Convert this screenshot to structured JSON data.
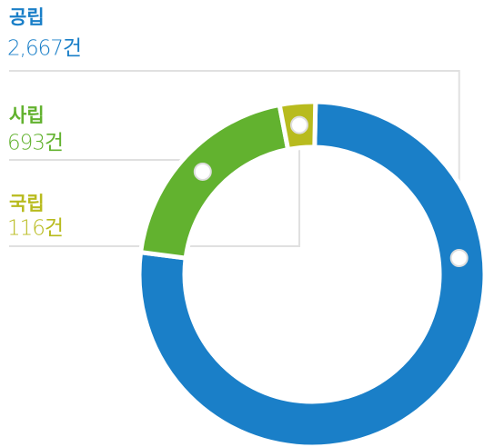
{
  "chart_data": {
    "type": "donut",
    "categories": [
      "공립",
      "사립",
      "국립"
    ],
    "values": [
      2667,
      693,
      116
    ],
    "value_labels": [
      "2,667건",
      "693건",
      "116건"
    ],
    "colors": [
      "#1a7fc8",
      "#62b22f",
      "#b8bb1e"
    ]
  }
}
